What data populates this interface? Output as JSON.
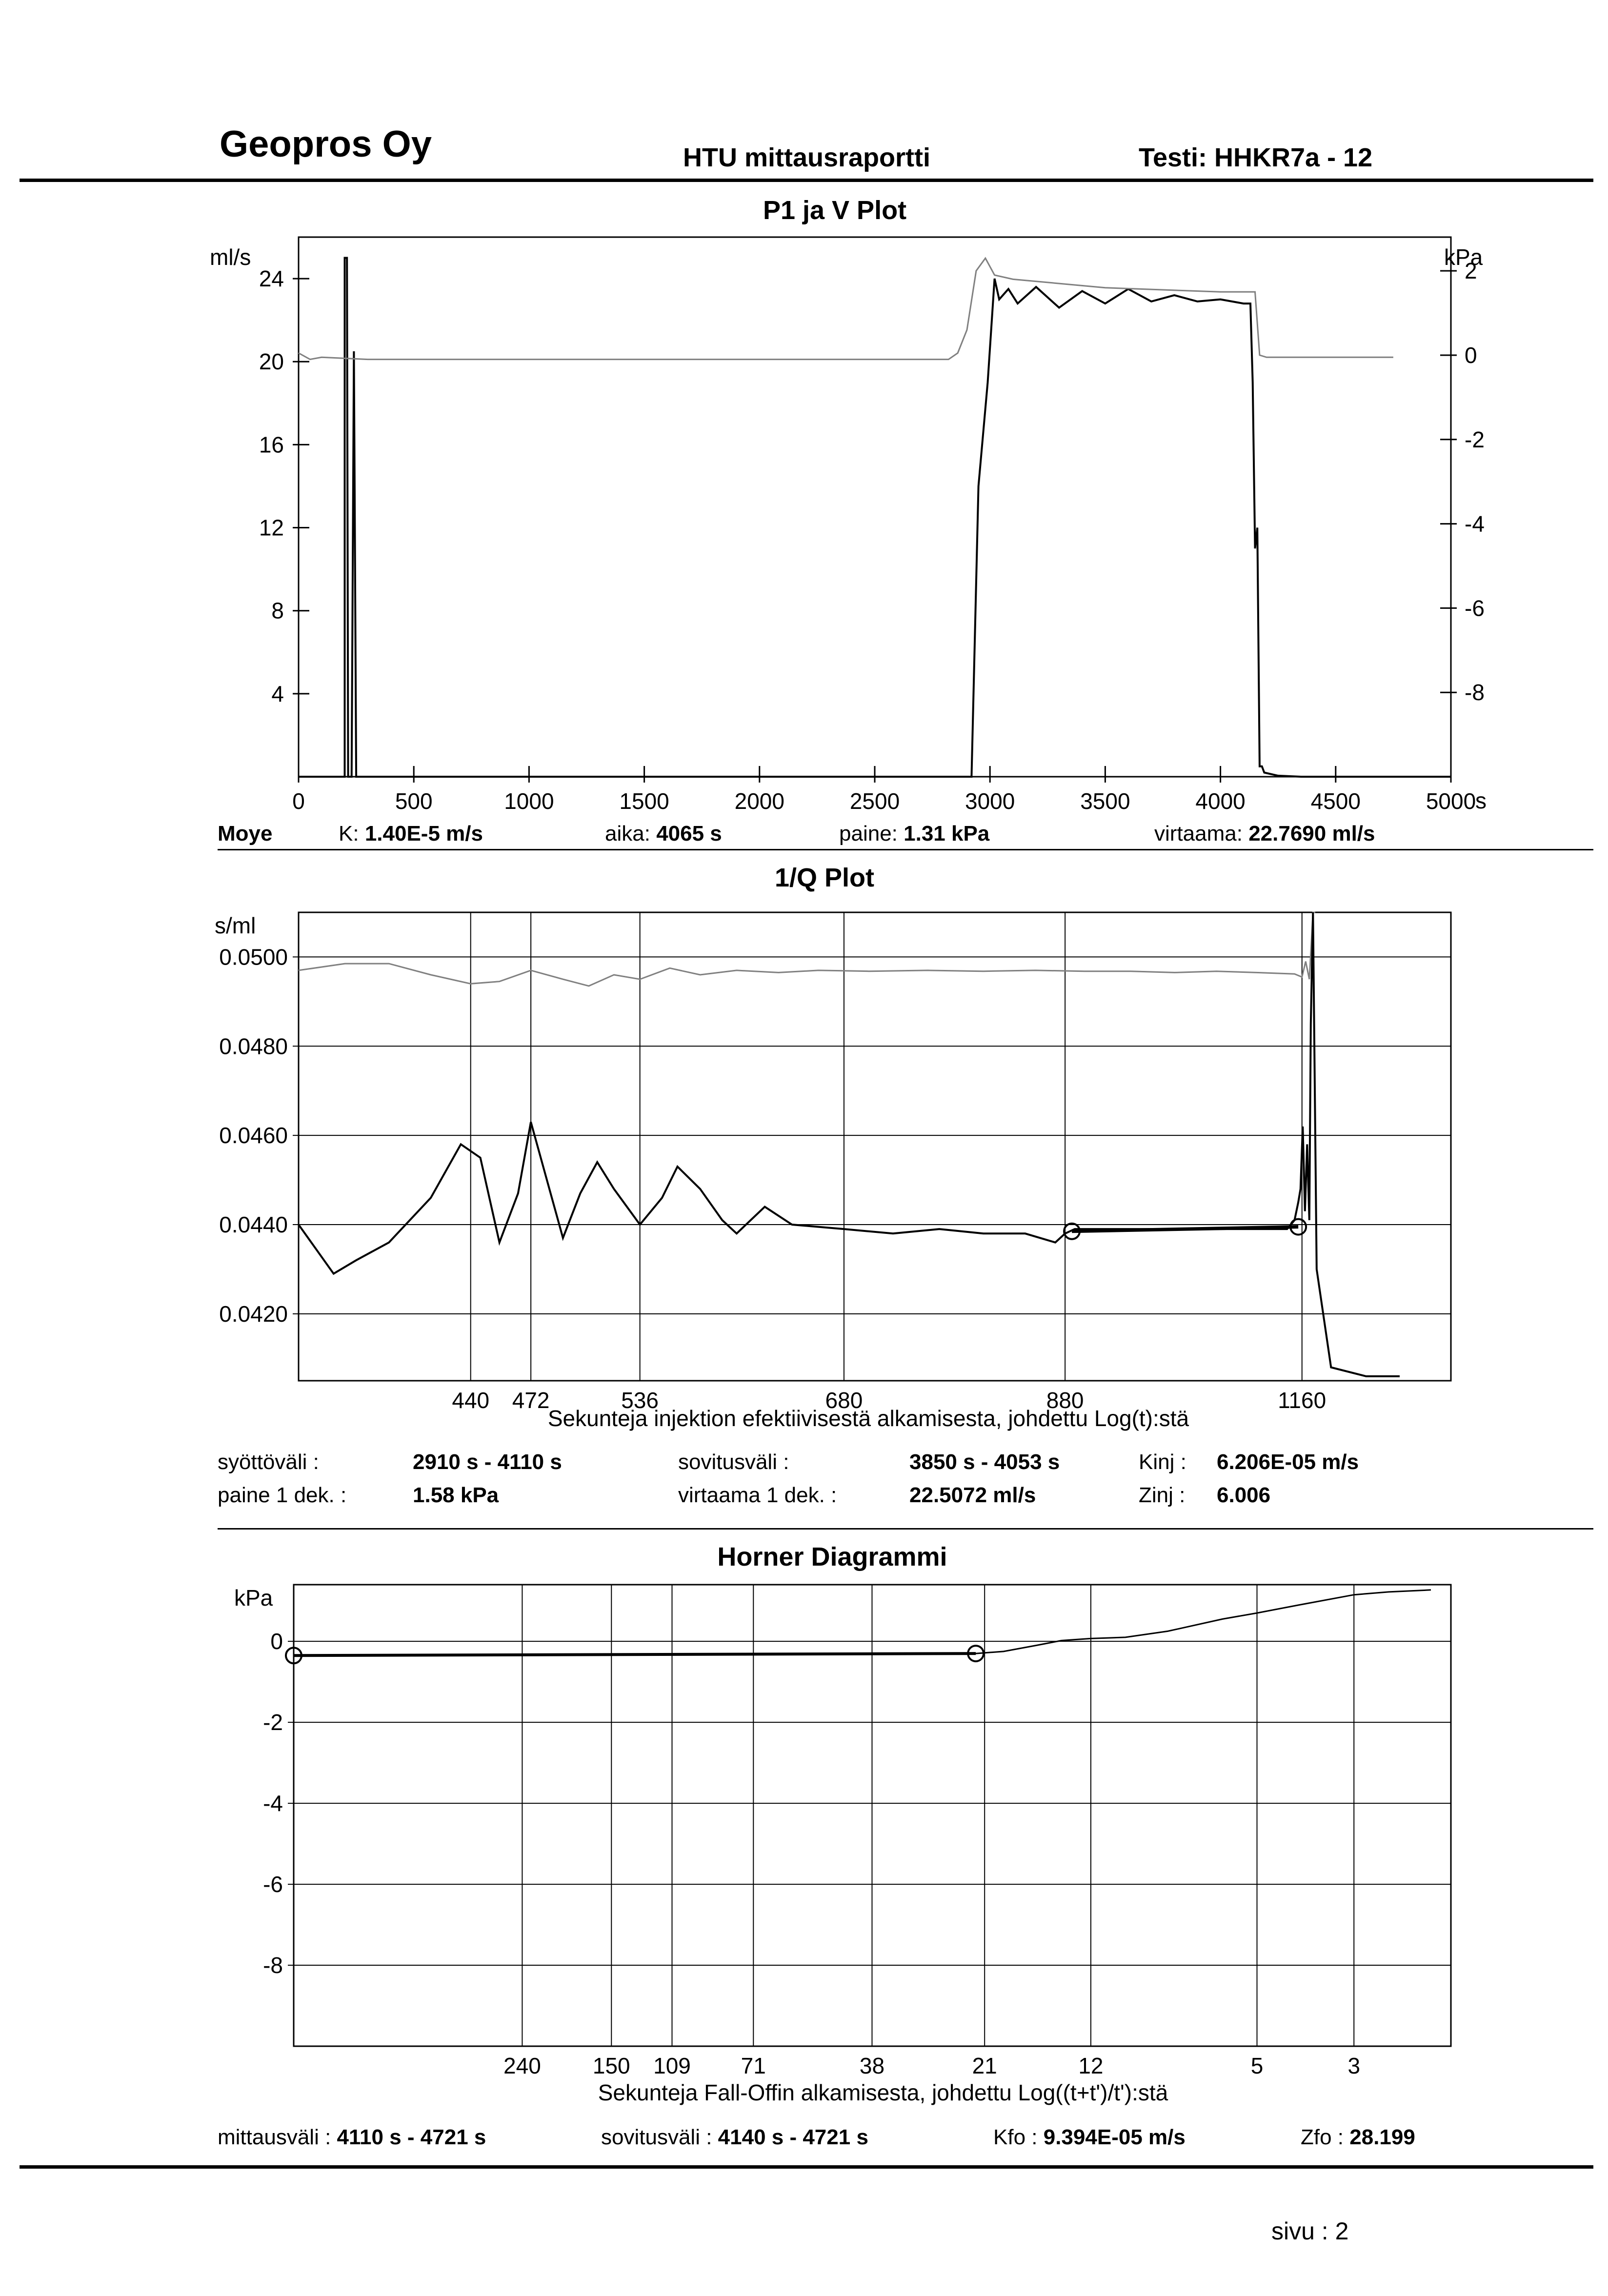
{
  "header": {
    "company": "Geopros Oy",
    "report_title": "HTU mittausraportti",
    "test_label": "Testi: HHKR7a - 12"
  },
  "page_footer": {
    "page_label": "sivu :  2"
  },
  "plot1": {
    "info": {
      "method": "Moye",
      "k_label": "K:",
      "k_value": "1.40E-5 m/s",
      "time_label": "aika:",
      "time_value": "4065 s",
      "pressure_label": "paine:",
      "pressure_value": "1.31 kPa",
      "flow_label": "virtaama:",
      "flow_value": "22.7690 ml/s"
    }
  },
  "plot2": {
    "info": {
      "feed_label": "syöttöväli :",
      "feed_value": "2910 s -  4110 s",
      "fit_label": "sovitusväli :",
      "fit_value": "3850 s  -  4053 s",
      "kinj_label": "Kinj :",
      "kinj_value": "6.206E-05 m/s",
      "p1_label": "paine 1 dek. :",
      "p1_value": "1.58 kPa",
      "q1_label": "virtaama 1 dek. :",
      "q1_value": "22.5072 ml/s",
      "zinj_label": "Zinj :",
      "zinj_value": "6.006"
    }
  },
  "plot3": {
    "info": {
      "meas_label": "mittausväli :",
      "meas_value": "4110 s - 4721 s",
      "fit_label": "sovitusväli :",
      "fit_value": "4140 s - 4721 s",
      "kfo_label": "Kfo :",
      "kfo_value": "9.394E-05 m/s",
      "zfo_label": "Zfo :",
      "zfo_value": "28.199"
    }
  },
  "chart_data": [
    {
      "type": "line",
      "title": "P1 ja V Plot",
      "xlabel": "",
      "x_unit": "s",
      "y_left_unit": "ml/s",
      "y_right_unit": "kPa",
      "xlim": [
        0,
        5000
      ],
      "ylim_left": [
        0,
        26
      ],
      "ylim_right": [
        -10,
        2.8
      ],
      "x_ticks": [
        0,
        500,
        1000,
        1500,
        2000,
        2500,
        3000,
        3500,
        4000,
        4500,
        5000
      ],
      "x_tick_labels": [
        "0",
        "500",
        "1000",
        "1500",
        "2000",
        "2500",
        "3000",
        "3500",
        "4000",
        "4500",
        "5000"
      ],
      "y_left_ticks": [
        4,
        8,
        12,
        16,
        20,
        24
      ],
      "y_left_tick_labels": [
        "4",
        "8",
        "12",
        "16",
        "20",
        "24"
      ],
      "y_right_ticks": [
        -8,
        -6,
        -4,
        -2,
        0,
        2
      ],
      "y_right_tick_labels": [
        "-8",
        "-6",
        "-4",
        "-2",
        "0",
        "2"
      ],
      "grid": false,
      "series": [
        {
          "axis": "left",
          "color": "#000000",
          "x": [
            0,
            200,
            200,
            210,
            215,
            230,
            240,
            250,
            280,
            2880,
            2920,
            2950,
            2990,
            3020,
            3040,
            3080,
            3120,
            3200,
            3300,
            3400,
            3500,
            3600,
            3700,
            3800,
            3900,
            4000,
            4100,
            4130,
            4140,
            4150,
            4160,
            4170,
            4180,
            4190,
            4250,
            4350,
            5000
          ],
          "y": [
            0,
            0,
            25,
            25,
            0,
            0,
            20.5,
            0,
            0,
            0,
            0,
            14,
            19,
            24,
            23,
            23.5,
            22.8,
            23.6,
            22.6,
            23.4,
            22.8,
            23.5,
            22.9,
            23.2,
            22.9,
            23,
            22.8,
            22.8,
            19,
            11,
            12,
            0.5,
            0.5,
            0.2,
            0.05,
            0,
            0
          ]
        },
        {
          "axis": "right",
          "color": "#808080",
          "x": [
            0,
            50,
            100,
            300,
            1000,
            2000,
            2820,
            2860,
            2900,
            2940,
            2980,
            3020,
            3100,
            3500,
            4000,
            4100,
            4150,
            4170,
            4200,
            4500,
            4750
          ],
          "y": [
            0.05,
            -0.1,
            -0.05,
            -0.1,
            -0.1,
            -0.1,
            -0.1,
            0.05,
            0.6,
            2,
            2.3,
            1.9,
            1.8,
            1.6,
            1.5,
            1.5,
            1.5,
            0,
            -0.05,
            -0.05,
            -0.05
          ]
        }
      ]
    },
    {
      "type": "line",
      "title": "1/Q Plot",
      "xlabel": "Sekunteja injektion efektiivisestä alkamisesta, johdettu Log(t):stä",
      "y_unit": "s/ml",
      "x_scale": "log",
      "xlim": [
        360,
        1380
      ],
      "ylim": [
        0.0405,
        0.051
      ],
      "x_ticks": [
        440,
        472,
        536,
        680,
        880,
        1160
      ],
      "x_tick_labels": [
        "440",
        "472",
        "536",
        "680",
        "880",
        "1160"
      ],
      "y_ticks": [
        0.042,
        0.044,
        0.046,
        0.048,
        0.05
      ],
      "y_tick_labels": [
        "0.0420",
        "0.0440",
        "0.0460",
        "0.0480",
        "0.0500"
      ],
      "grid": true,
      "fit_points": [
        {
          "x": 887,
          "y": 0.04385
        },
        {
          "x": 1155,
          "y": 0.04395
        }
      ],
      "series": [
        {
          "color": "#808080",
          "x": [
            360,
            380,
            400,
            420,
            440,
            455,
            472,
            490,
            505,
            520,
            536,
            555,
            575,
            600,
            630,
            660,
            700,
            750,
            800,
            850,
            900,
            950,
            1000,
            1050,
            1100,
            1150,
            1160,
            1165,
            1170,
            1175,
            1178
          ],
          "y": [
            0.0497,
            0.04985,
            0.04985,
            0.0496,
            0.0494,
            0.04945,
            0.0497,
            0.0495,
            0.04935,
            0.0496,
            0.0495,
            0.04975,
            0.0496,
            0.0497,
            0.04965,
            0.0497,
            0.04968,
            0.0497,
            0.04968,
            0.0497,
            0.04968,
            0.04968,
            0.04965,
            0.04968,
            0.04965,
            0.04962,
            0.04955,
            0.0499,
            0.0495,
            0.0512,
            0.0512
          ]
        },
        {
          "color": "#000000",
          "x": [
            360,
            375,
            385,
            400,
            420,
            435,
            445,
            455,
            465,
            472,
            490,
            500,
            510,
            520,
            536,
            550,
            560,
            575,
            590,
            600,
            620,
            640,
            680,
            720,
            760,
            800,
            840,
            870,
            880,
            890,
            950,
            1000,
            1050,
            1100,
            1140,
            1150,
            1155,
            1158,
            1161,
            1164,
            1167,
            1170,
            1172,
            1175,
            1180,
            1200,
            1250,
            1300
          ],
          "y": [
            0.044,
            0.0429,
            0.0432,
            0.0436,
            0.0446,
            0.0458,
            0.0455,
            0.0436,
            0.0447,
            0.0463,
            0.0437,
            0.0447,
            0.0454,
            0.0448,
            0.044,
            0.0446,
            0.0453,
            0.0448,
            0.0441,
            0.0438,
            0.0444,
            0.044,
            0.0439,
            0.0438,
            0.0439,
            0.0438,
            0.0438,
            0.0436,
            0.0438,
            0.0439,
            0.0439,
            0.0439,
            0.0439,
            0.0439,
            0.0439,
            0.0441,
            0.0445,
            0.0448,
            0.0462,
            0.0443,
            0.0458,
            0.0441,
            0.0485,
            0.0512,
            0.043,
            0.0408,
            0.0406,
            0.0406
          ]
        }
      ]
    },
    {
      "type": "line",
      "title": "Horner Diagrammi",
      "xlabel": "Sekunteja Fall-Offin alkamisesta, johdettu Log((t+t')/t'):stä",
      "y_unit": "kPa",
      "x_scale": "log-reversed",
      "xlim": [
        800,
        1.8
      ],
      "ylim": [
        -10,
        1.4
      ],
      "x_ticks": [
        240,
        150,
        109,
        71,
        38,
        21,
        12,
        5,
        3
      ],
      "x_tick_labels": [
        "240",
        "150",
        "109",
        "71",
        "38",
        "21",
        "12",
        "5",
        "3"
      ],
      "y_ticks": [
        -8,
        -6,
        -4,
        -2,
        0
      ],
      "y_tick_labels": [
        "-8",
        "-6",
        "-4",
        "-2",
        "0"
      ],
      "grid": true,
      "fit_points": [
        {
          "x": 800,
          "y": -0.35
        },
        {
          "x": 22,
          "y": -0.3
        }
      ],
      "series": [
        {
          "color": "#000000",
          "x": [
            800,
            400,
            150,
            60,
            30,
            22,
            19,
            16,
            14,
            12,
            10,
            8,
            6,
            5,
            4,
            3,
            2.5,
            2
          ],
          "y": [
            -0.35,
            -0.34,
            -0.33,
            -0.32,
            -0.31,
            -0.3,
            -0.25,
            -0.1,
            0.02,
            0.07,
            0.1,
            0.25,
            0.55,
            0.7,
            0.9,
            1.15,
            1.22,
            1.27
          ]
        }
      ]
    }
  ]
}
